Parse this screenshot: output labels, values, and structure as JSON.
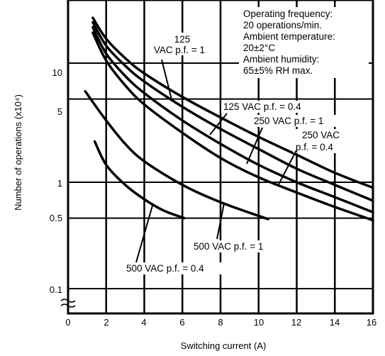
{
  "chart_data": {
    "type": "line",
    "xlabel": "Switching current (A)",
    "ylabel": "Number of operations (x10⁴)",
    "xlim": [
      0,
      16
    ],
    "ylim": [
      0.1,
      25
    ],
    "yscale": "log",
    "x_ticks": [
      "0",
      "2",
      "4",
      "6",
      "8",
      "10",
      "12",
      "14",
      "16"
    ],
    "y_ticks": [
      {
        "label": "0.1",
        "value": 0.1
      },
      {
        "label": "0.5",
        "value": 0.5
      },
      {
        "label": "1",
        "value": 1
      },
      {
        "label": "5",
        "value": 5
      },
      {
        "label": "10",
        "value": 10
      }
    ],
    "grid": true,
    "conditions": [
      "Operating frequency:",
      "20 operations/min.",
      "Ambient temperature:",
      "20±2°C",
      "Ambient humidity:",
      "65±5% RH max."
    ],
    "curve_labels": [
      {
        "lines": [
          "125",
          "VAC p.f. = 1"
        ]
      },
      {
        "lines": [
          "125 VAC p.f. = 0.4"
        ]
      },
      {
        "lines": [
          "250 VAC p.f. = 1"
        ]
      },
      {
        "lines": [
          "250 VAC",
          "p.f. = 0.4"
        ]
      },
      {
        "lines": [
          "500 VAC p.f. = 1"
        ]
      },
      {
        "lines": [
          "500 VAC p.f. = 0.4"
        ]
      }
    ],
    "series": [
      {
        "x": [
          1.3,
          2,
          3,
          4,
          6,
          8,
          10,
          12,
          14,
          16
        ],
        "y": [
          24,
          16,
          11,
          8.2,
          5.2,
          3.5,
          2.4,
          1.7,
          1.2,
          0.9
        ]
      },
      {
        "x": [
          1.3,
          2,
          3,
          4,
          6,
          8,
          10,
          12,
          14,
          16
        ],
        "y": [
          22,
          14,
          9.5,
          7,
          4.3,
          2.8,
          1.9,
          1.3,
          0.95,
          0.7
        ]
      },
      {
        "x": [
          1.3,
          2,
          3,
          4,
          6,
          8,
          10,
          12,
          14,
          16
        ],
        "y": [
          20,
          12,
          7.8,
          5.6,
          3.3,
          2.1,
          1.4,
          1.0,
          0.75,
          0.56
        ]
      },
      {
        "x": [
          1.3,
          2,
          3,
          4,
          6,
          8,
          10,
          12,
          14,
          16
        ],
        "y": [
          18,
          10.5,
          6.5,
          4.5,
          2.6,
          1.6,
          1.1,
          0.82,
          0.62,
          0.48
        ]
      },
      {
        "x": [
          0.9,
          2,
          3,
          4,
          6,
          8,
          10.5
        ],
        "y": [
          5.8,
          3.3,
          2.1,
          1.5,
          0.95,
          0.68,
          0.49
        ]
      },
      {
        "x": [
          1.4,
          2,
          3,
          4,
          5,
          6.1
        ],
        "y": [
          2.2,
          1.4,
          0.95,
          0.72,
          0.58,
          0.5
        ]
      }
    ]
  }
}
